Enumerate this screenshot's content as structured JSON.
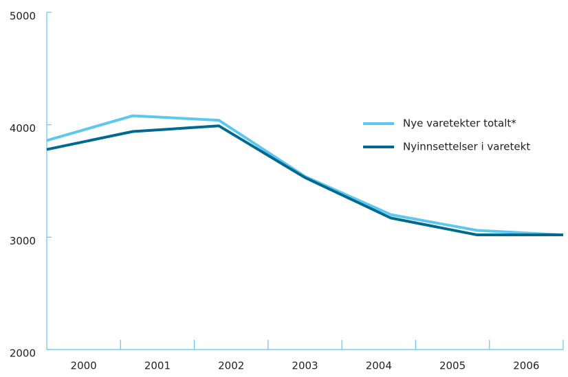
{
  "chart_data": {
    "type": "line",
    "categories": [
      "2000",
      "2001",
      "2002",
      "2003",
      "2004",
      "2005",
      "2006"
    ],
    "series": [
      {
        "name": "Nye varetekter totalt*",
        "color": "#5cc8ef",
        "values": [
          3860,
          4080,
          4040,
          3540,
          3200,
          3060,
          3020
        ]
      },
      {
        "name": "Nyinnsettelser i varetekt",
        "color": "#00698f",
        "values": [
          3780,
          3940,
          3990,
          3530,
          3170,
          3020,
          3020
        ]
      }
    ],
    "ylim": [
      2000,
      5000
    ],
    "yticks": [
      2000,
      3000,
      4000,
      5000
    ],
    "legend": "right"
  }
}
